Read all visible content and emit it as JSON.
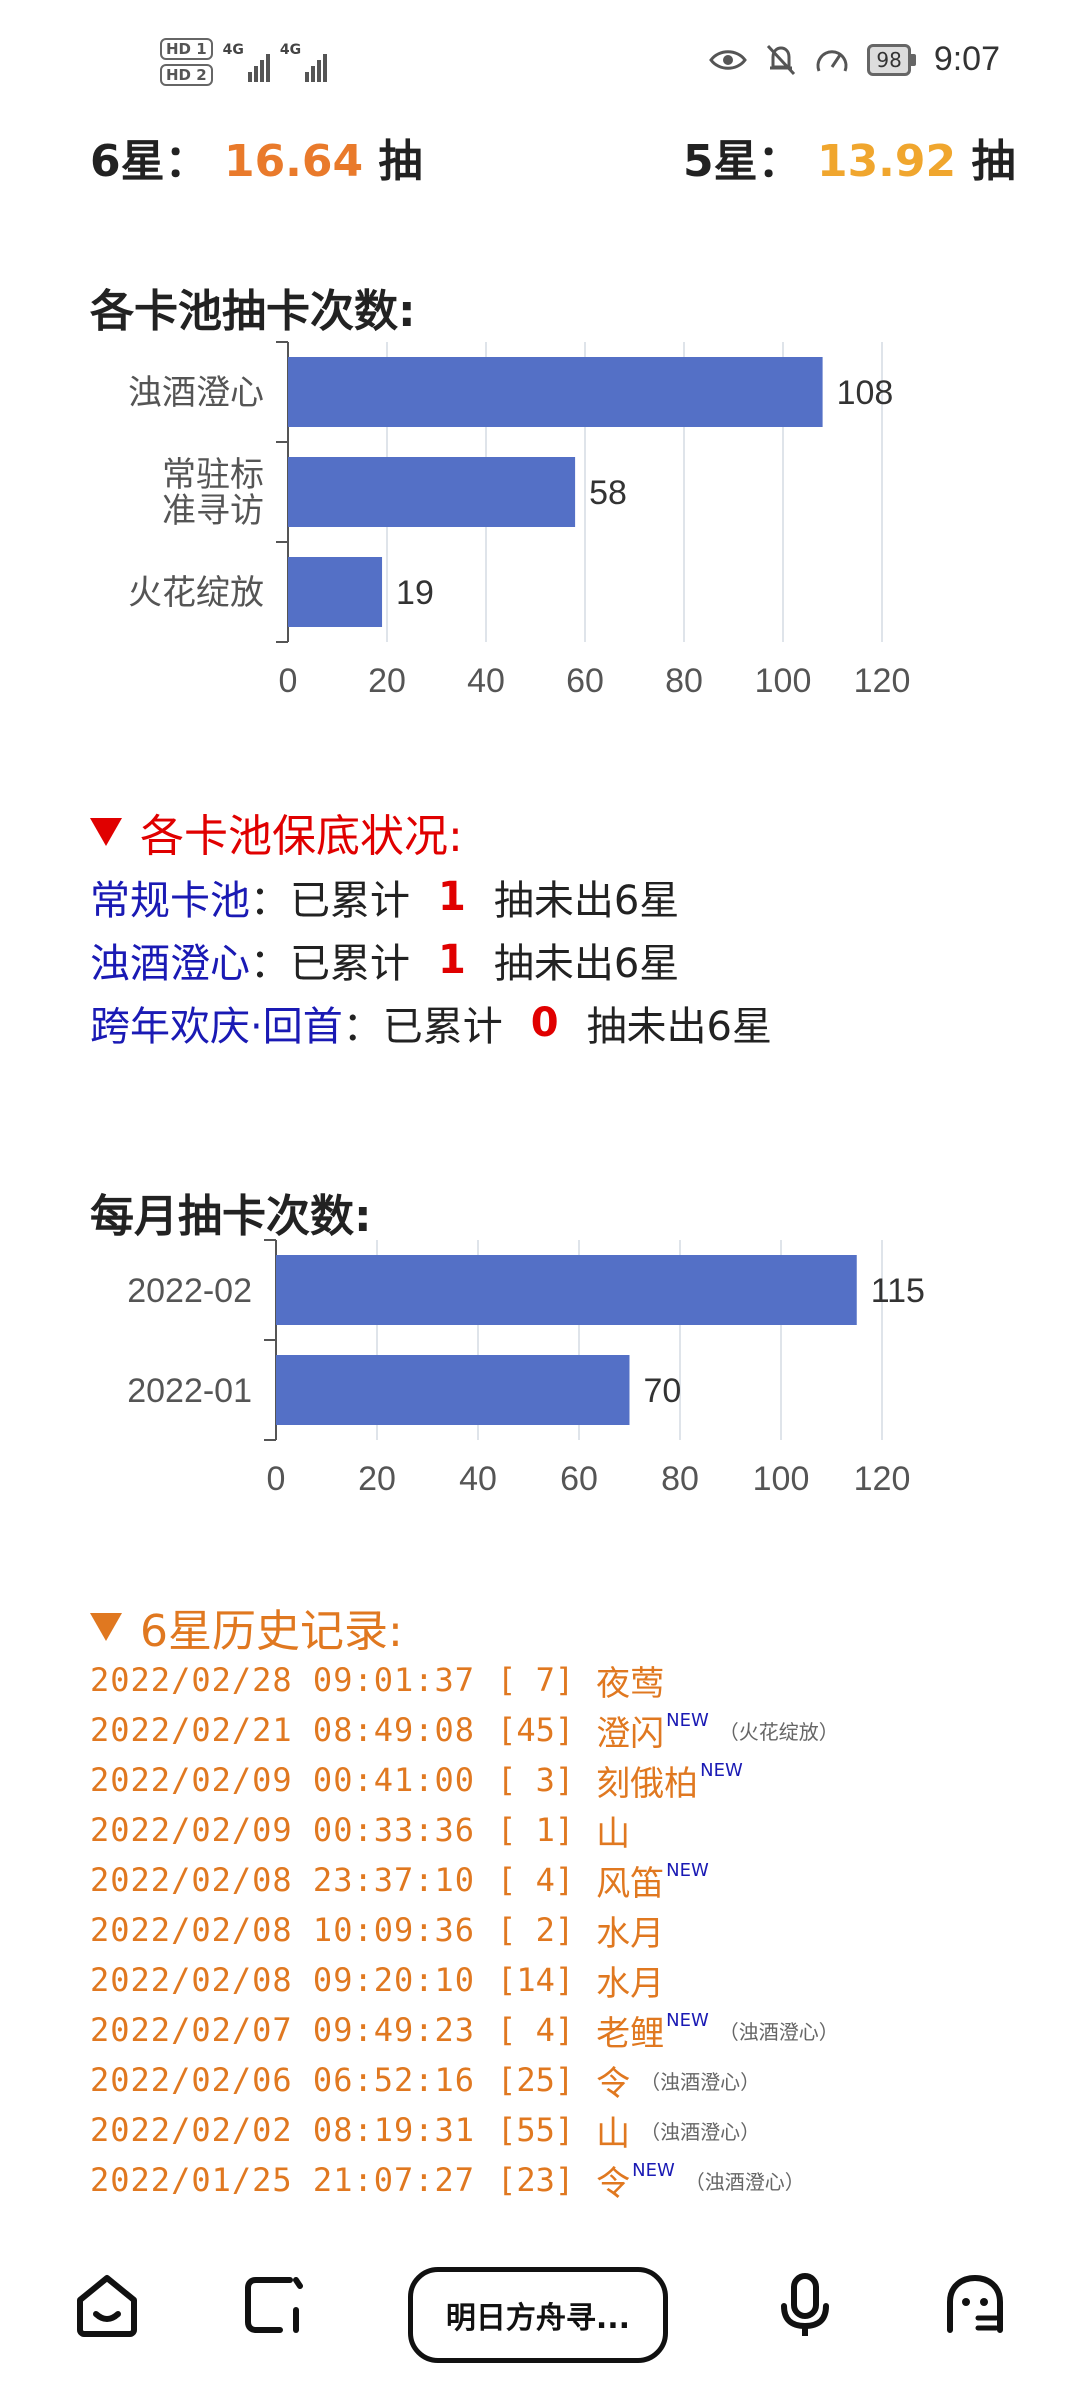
{
  "status_bar": {
    "hd1": "HD 1",
    "hd2": "HD 2",
    "signal1_label": "4G",
    "signal2_label": "4G",
    "battery": "98",
    "time": "9:07"
  },
  "summary": {
    "six_star_prefix": "6星：",
    "six_star_value": "16.64",
    "six_star_suffix": "抽",
    "five_star_prefix": "5星：",
    "five_star_value": "13.92",
    "five_star_suffix": "抽",
    "colors": {
      "six": "#e97a2b",
      "five": "#f0a62e"
    }
  },
  "pool_chart": {
    "title": "各卡池抽卡次数:",
    "chart_data": {
      "type": "bar",
      "orientation": "horizontal",
      "categories": [
        "浊酒澄心",
        "常驻标准寻访",
        "火花绽放"
      ],
      "category_lines": [
        [
          "浊酒澄心"
        ],
        [
          "常驻标",
          "准寻访"
        ],
        [
          "火花绽放"
        ]
      ],
      "values": [
        108,
        58,
        19
      ],
      "xlim": [
        0,
        120
      ],
      "ticks": [
        0,
        20,
        40,
        60,
        80,
        100,
        120
      ],
      "grid": true,
      "bar_color": "#5470c6"
    }
  },
  "pity": {
    "title": "各卡池保底状况:",
    "rows": [
      {
        "pool": "常规卡池",
        "colon": "：",
        "label": "已累计",
        "count": "1",
        "tail": "抽未出6星"
      },
      {
        "pool": "浊酒澄心",
        "colon": "：",
        "label": "已累计",
        "count": "1",
        "tail": "抽未出6星"
      },
      {
        "pool": "跨年欢庆·回首",
        "colon": "：",
        "label": "已累计",
        "count": "0",
        "tail": "抽未出6星"
      }
    ]
  },
  "month_chart": {
    "title": "每月抽卡次数:",
    "chart_data": {
      "type": "bar",
      "orientation": "horizontal",
      "categories": [
        "2022-02",
        "2022-01"
      ],
      "category_lines": [
        [
          "2022-02"
        ],
        [
          "2022-01"
        ]
      ],
      "values": [
        115,
        70
      ],
      "xlim": [
        0,
        120
      ],
      "ticks": [
        0,
        20,
        40,
        60,
        80,
        100,
        120
      ],
      "grid": true,
      "bar_color": "#5470c6"
    }
  },
  "history": {
    "title": "6星历史记录:",
    "new_label": "NEW",
    "rows": [
      {
        "datetime": "2022/02/28 09:01:37",
        "pulls": "[ 7]",
        "name": "夜莺",
        "new": false,
        "pool": ""
      },
      {
        "datetime": "2022/02/21 08:49:08",
        "pulls": "[45]",
        "name": "澄闪",
        "new": true,
        "pool": "（火花绽放）"
      },
      {
        "datetime": "2022/02/09 00:41:00",
        "pulls": "[ 3]",
        "name": "刻俄柏",
        "new": true,
        "pool": ""
      },
      {
        "datetime": "2022/02/09 00:33:36",
        "pulls": "[ 1]",
        "name": "山",
        "new": false,
        "pool": ""
      },
      {
        "datetime": "2022/02/08 23:37:10",
        "pulls": "[ 4]",
        "name": "风笛",
        "new": true,
        "pool": ""
      },
      {
        "datetime": "2022/02/08 10:09:36",
        "pulls": "[ 2]",
        "name": "水月",
        "new": false,
        "pool": ""
      },
      {
        "datetime": "2022/02/08 09:20:10",
        "pulls": "[14]",
        "name": "水月",
        "new": false,
        "pool": ""
      },
      {
        "datetime": "2022/02/07 09:49:23",
        "pulls": "[ 4]",
        "name": "老鲤",
        "new": true,
        "pool": "（浊酒澄心）"
      },
      {
        "datetime": "2022/02/06 06:52:16",
        "pulls": "[25]",
        "name": "令",
        "new": false,
        "pool": "（浊酒澄心）"
      },
      {
        "datetime": "2022/02/02 08:19:31",
        "pulls": "[55]",
        "name": "山",
        "new": false,
        "pool": "（浊酒澄心）"
      },
      {
        "datetime": "2022/01/25 21:07:27",
        "pulls": "[23]",
        "name": "令",
        "new": true,
        "pool": "（浊酒澄心）"
      }
    ]
  },
  "bottom_nav": {
    "center_label": "明日方舟寻...",
    "icons": [
      "home-icon",
      "tabs-icon",
      "mic-icon",
      "robot-face-icon"
    ]
  }
}
